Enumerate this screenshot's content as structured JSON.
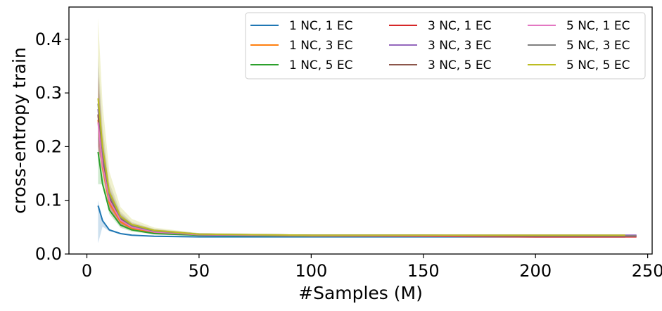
{
  "chart_data": {
    "type": "line",
    "xlabel": "#Samples (M)",
    "ylabel": "cross-entropy train",
    "xlim": [
      -8,
      252
    ],
    "ylim": [
      0,
      0.46
    ],
    "x_ticks": [
      0,
      50,
      100,
      150,
      200,
      250
    ],
    "x_tick_labels": [
      "0",
      "50",
      "100",
      "150",
      "200",
      "250"
    ],
    "y_ticks": [
      0.0,
      0.1,
      0.2,
      0.3,
      0.4
    ],
    "y_tick_labels": [
      "0.0",
      "0.1",
      "0.2",
      "0.3",
      "0.4"
    ],
    "grid": false,
    "legend_position": "top-right",
    "legend_columns": 3,
    "series": [
      {
        "name": "1 NC, 1 EC",
        "color": "#1f77b4",
        "x": [
          5,
          7,
          10,
          15,
          20,
          30,
          50,
          100,
          150,
          200,
          240
        ],
        "y": [
          0.09,
          0.062,
          0.045,
          0.038,
          0.035,
          0.033,
          0.032,
          0.032,
          0.032,
          0.032,
          0.032
        ],
        "band": [
          0.02,
          0.08
        ]
      },
      {
        "name": "1 NC, 3 EC",
        "color": "#ff7f0e",
        "x": [
          5,
          7,
          10,
          15,
          20,
          30,
          50,
          100,
          150,
          200,
          240
        ],
        "y": [
          0.25,
          0.16,
          0.095,
          0.06,
          0.048,
          0.04,
          0.035,
          0.034,
          0.034,
          0.034,
          0.034
        ],
        "band": [
          0.2,
          0.3
        ]
      },
      {
        "name": "1 NC, 5 EC",
        "color": "#2ca02c",
        "x": [
          5,
          7,
          10,
          15,
          20,
          30,
          50,
          100,
          150,
          200,
          240
        ],
        "y": [
          0.19,
          0.13,
          0.082,
          0.054,
          0.045,
          0.038,
          0.035,
          0.033,
          0.033,
          0.033,
          0.033
        ],
        "band": [
          0.13,
          0.26
        ]
      },
      {
        "name": "3 NC, 1 EC",
        "color": "#d62728",
        "x": [
          5,
          7,
          10,
          15,
          20,
          30,
          50,
          100,
          150,
          200,
          245
        ],
        "y": [
          0.26,
          0.17,
          0.1,
          0.063,
          0.05,
          0.041,
          0.036,
          0.034,
          0.033,
          0.032,
          0.032
        ],
        "band": [
          0.2,
          0.33
        ]
      },
      {
        "name": "3 NC, 3 EC",
        "color": "#9467bd",
        "x": [
          5,
          7,
          10,
          15,
          20,
          30,
          50,
          100,
          150,
          200,
          245
        ],
        "y": [
          0.27,
          0.18,
          0.105,
          0.066,
          0.052,
          0.043,
          0.037,
          0.035,
          0.035,
          0.035,
          0.035
        ],
        "band": [
          0.2,
          0.35
        ]
      },
      {
        "name": "3 NC, 5 EC",
        "color": "#8c564b",
        "x": [
          5,
          7,
          10,
          15,
          20,
          30,
          50,
          100,
          150,
          200,
          245
        ],
        "y": [
          0.26,
          0.175,
          0.103,
          0.065,
          0.051,
          0.042,
          0.036,
          0.034,
          0.034,
          0.033,
          0.033
        ],
        "band": [
          0.19,
          0.33
        ]
      },
      {
        "name": "5 NC, 1 EC",
        "color": "#e377c2",
        "x": [
          5,
          7,
          10,
          15,
          20,
          30,
          50,
          100,
          150,
          200,
          245
        ],
        "y": [
          0.245,
          0.165,
          0.1,
          0.063,
          0.05,
          0.041,
          0.036,
          0.034,
          0.034,
          0.034,
          0.034
        ],
        "band": [
          0.2,
          0.3
        ]
      },
      {
        "name": "5 NC, 3 EC",
        "color": "#7f7f7f",
        "x": [
          5,
          7,
          10,
          15,
          20,
          30,
          50,
          100,
          150,
          200,
          245
        ],
        "y": [
          0.28,
          0.19,
          0.11,
          0.068,
          0.053,
          0.043,
          0.037,
          0.035,
          0.035,
          0.034,
          0.034
        ],
        "band": [
          0.21,
          0.37
        ]
      },
      {
        "name": "5 NC, 5 EC",
        "color": "#bcbd22",
        "x": [
          5,
          7,
          10,
          15,
          20,
          30,
          50,
          100,
          150,
          200,
          240
        ],
        "y": [
          0.29,
          0.2,
          0.115,
          0.07,
          0.055,
          0.044,
          0.037,
          0.035,
          0.035,
          0.035,
          0.035
        ],
        "band": [
          0.22,
          0.44
        ]
      }
    ]
  }
}
